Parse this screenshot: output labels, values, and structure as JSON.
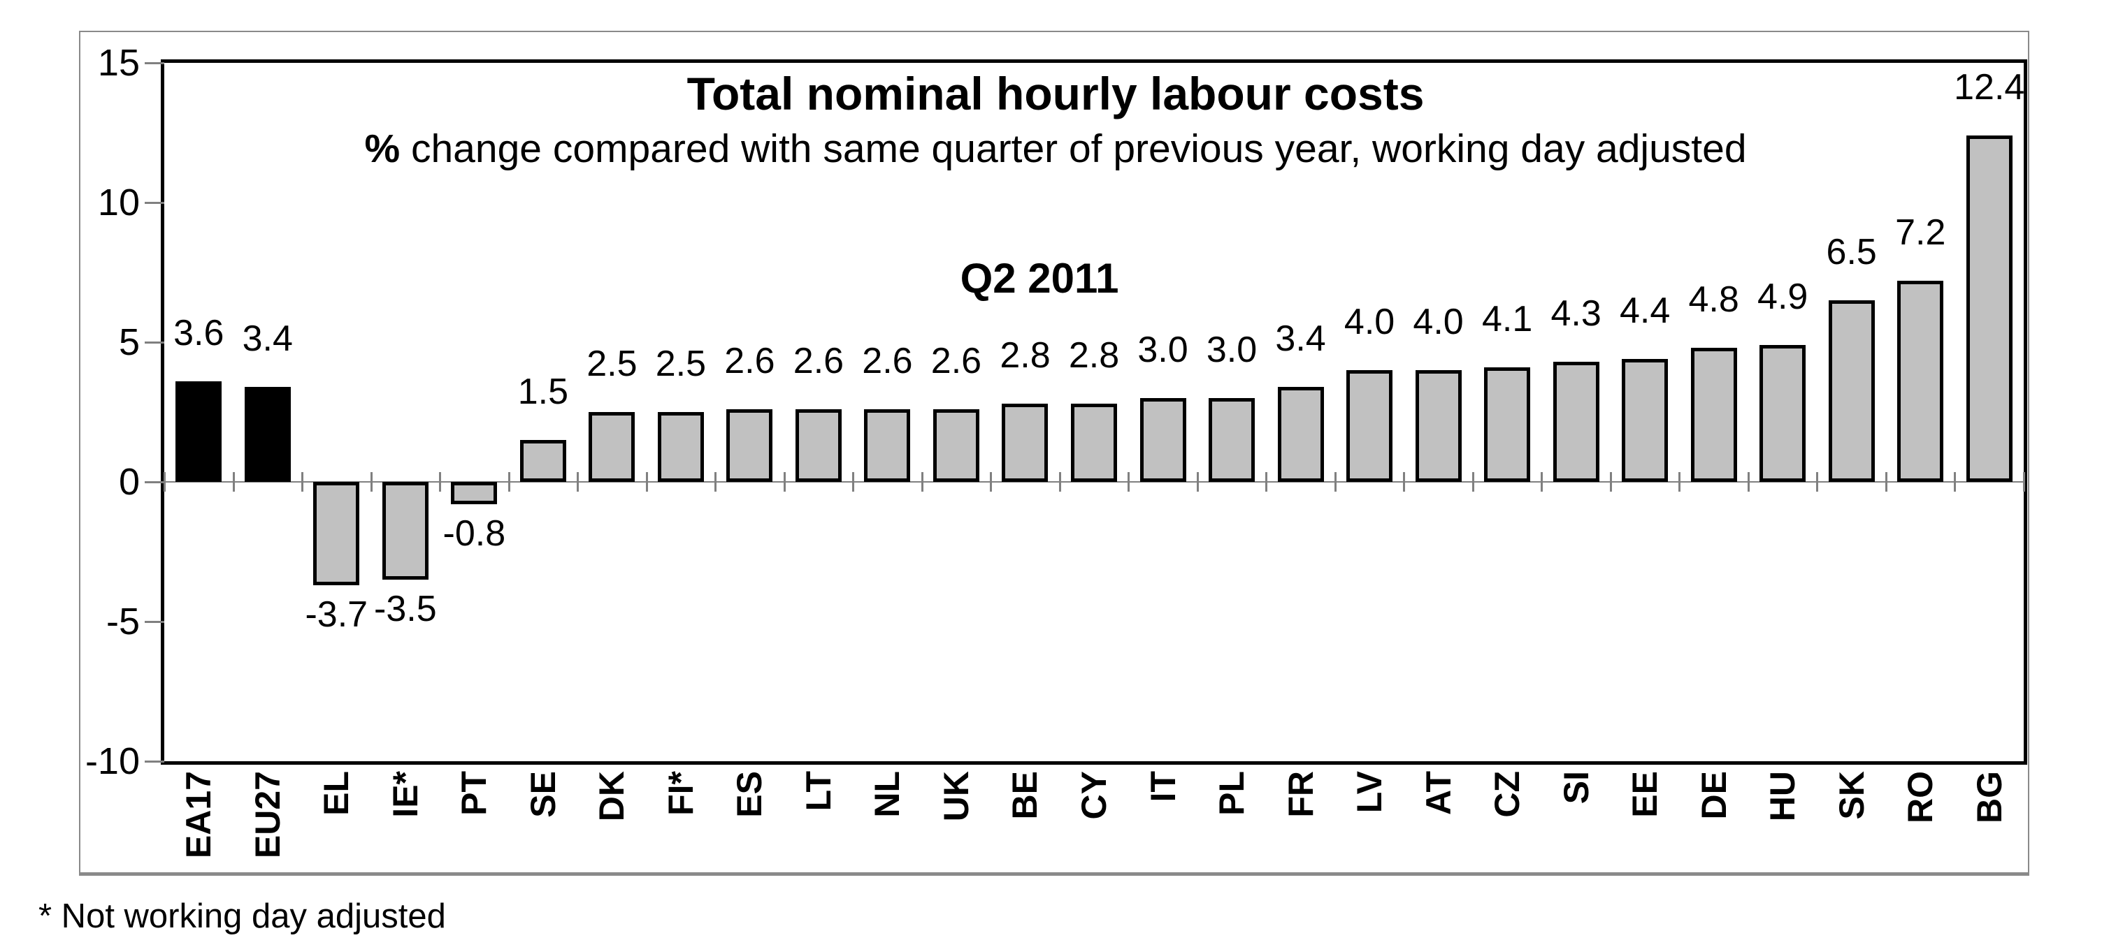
{
  "chart_data": {
    "type": "bar",
    "title": "Total nominal hourly labour costs",
    "subtitle": {
      "bold_prefix": "%",
      "rest": " change compared with same quarter of previous year, working day adjusted"
    },
    "period_label": "Q2 2011",
    "footnote": "* Not working day adjusted",
    "categories": [
      "EA17",
      "EU27",
      "EL",
      "IE*",
      "PT",
      "SE",
      "DK",
      "FI*",
      "ES",
      "LT",
      "NL",
      "UK",
      "BE",
      "CY",
      "IT",
      "PL",
      "FR",
      "LV",
      "AT",
      "CZ",
      "SI",
      "EE",
      "DE",
      "HU",
      "SK",
      "RO",
      "BG"
    ],
    "values": [
      3.6,
      3.4,
      -3.7,
      -3.5,
      -0.8,
      1.5,
      2.5,
      2.5,
      2.6,
      2.6,
      2.6,
      2.6,
      2.8,
      2.8,
      3.0,
      3.0,
      3.4,
      4.0,
      4.0,
      4.1,
      4.3,
      4.4,
      4.8,
      4.9,
      6.5,
      7.2,
      12.4
    ],
    "value_labels": [
      "3.6",
      "3.4",
      "-3.7",
      "-3.5",
      "-0.8",
      "1.5",
      "2.5",
      "2.5",
      "2.6",
      "2.6",
      "2.6",
      "2.6",
      "2.8",
      "2.8",
      "3.0",
      "3.0",
      "3.4",
      "4.0",
      "4.0",
      "4.1",
      "4.3",
      "4.4",
      "4.8",
      "4.9",
      "6.5",
      "7.2",
      "12.4"
    ],
    "bar_colors": [
      "black",
      "black",
      "gray",
      "gray",
      "gray",
      "gray",
      "gray",
      "gray",
      "gray",
      "gray",
      "gray",
      "gray",
      "gray",
      "gray",
      "gray",
      "gray",
      "gray",
      "gray",
      "gray",
      "gray",
      "gray",
      "gray",
      "gray",
      "gray",
      "gray",
      "gray",
      "gray"
    ],
    "y_axis": {
      "ylim": [
        -10,
        15
      ],
      "ticks": [
        15,
        10,
        5,
        0,
        -5,
        -10
      ],
      "tick_labels": [
        "15",
        "10",
        "5",
        "0",
        "-5",
        "-10"
      ]
    },
    "grid": "off",
    "legend": "none",
    "colors": {
      "bar_fill": "#c1c1c1",
      "bar_border": "#000000",
      "highlight_fill": "#000000",
      "axis_tick": "#808080",
      "zero_line": "#808080",
      "plot_border": "#000000",
      "frame_border": "#8a8a8a",
      "background": "#ffffff"
    }
  }
}
